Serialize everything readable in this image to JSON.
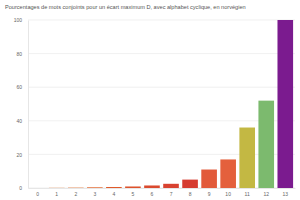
{
  "chart_data": {
    "type": "bar",
    "title": "Pourcentages de mots conjoints pour un écart maximum D, avec alphabet cyclique, en norvégien",
    "categories": [
      "0",
      "1",
      "2",
      "3",
      "4",
      "5",
      "6",
      "7",
      "8",
      "9",
      "10",
      "11",
      "12",
      "13"
    ],
    "values": [
      0,
      0.1,
      0.2,
      0.4,
      0.6,
      0.9,
      1.5,
      2.5,
      5,
      11,
      17,
      36,
      52,
      100
    ],
    "colors": [
      "#e8741f",
      "#e8701f",
      "#e66a22",
      "#e36226",
      "#e05a2a",
      "#dd522c",
      "#da4a2e",
      "#d84230",
      "#d63c30",
      "#e25a3a",
      "#e4603c",
      "#c3b843",
      "#7cba6e",
      "#7b1b8f"
    ],
    "ylim": [
      0,
      100
    ],
    "yticks": [
      0,
      20,
      40,
      60,
      80,
      100
    ],
    "grid": true
  }
}
